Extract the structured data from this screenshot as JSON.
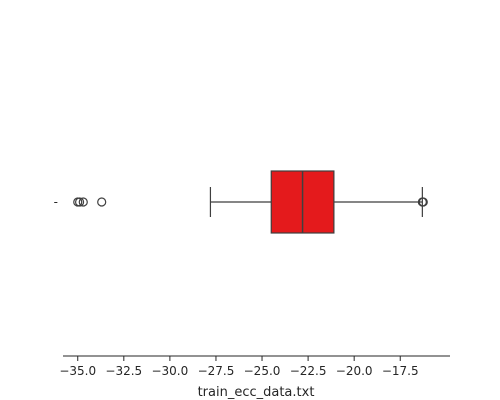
{
  "chart_data": {
    "type": "box",
    "orientation": "horizontal",
    "title": "",
    "xlabel": "train_ecc_data.txt",
    "ylabel": "",
    "category_label": "-",
    "xlim": [
      -35.8,
      -14.8
    ],
    "xticks": [
      -35.0,
      -32.5,
      -30.0,
      -27.5,
      -25.0,
      -22.5,
      -20.0,
      -17.5
    ],
    "xtick_labels": [
      "−35.0",
      "−32.5",
      "−30.0",
      "−27.5",
      "−25.0",
      "−22.5",
      "−20.0",
      "−17.5"
    ],
    "grid": false,
    "box": {
      "whisker_low": -27.8,
      "q1": -24.5,
      "median": -22.8,
      "q3": -21.1,
      "whisker_high": -16.3,
      "outliers": [
        -35.0,
        -34.9,
        -34.7,
        -33.7,
        -16.3,
        -16.25
      ]
    },
    "colors": {
      "box_fill": "#e41a1c",
      "line": "#3f3f3f",
      "axis": "#262626"
    }
  }
}
